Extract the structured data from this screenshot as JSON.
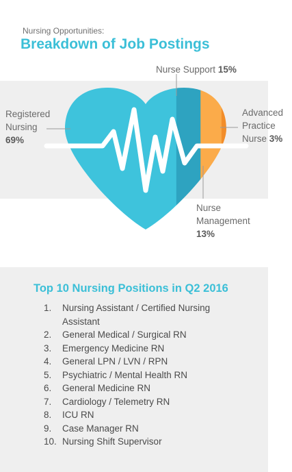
{
  "header": {
    "subtitle": "Nursing Opportunities:",
    "title": "Breakdown of Job Postings"
  },
  "chart_data": {
    "type": "pie",
    "shape": "heart",
    "slices": [
      {
        "label_lines": [
          "Registered",
          "Nursing"
        ],
        "value": 69,
        "value_label": "69%",
        "color": "#3ec3dc"
      },
      {
        "label_lines": [
          "Nurse Support"
        ],
        "value": 15,
        "value_label": "15%",
        "color": "#2ea3c0"
      },
      {
        "label_lines": [
          "Nurse",
          "Management"
        ],
        "value": 13,
        "value_label": "13%",
        "color": "#fbab4a"
      },
      {
        "label_lines": [
          "Advanced",
          "Practice",
          "Nurse"
        ],
        "value": 3,
        "value_label": "3%",
        "color": "#f28d2a"
      }
    ]
  },
  "top_positions": {
    "title": "Top 10 Nursing Positions in Q2 2016",
    "items": [
      {
        "num": "1.",
        "text": "Nursing Assistant / Certified Nursing Assistant"
      },
      {
        "num": "2.",
        "text": "General Medical / Surgical RN"
      },
      {
        "num": "3.",
        "text": "Emergency Medicine RN"
      },
      {
        "num": "4.",
        "text": "General LPN / LVN / RPN"
      },
      {
        "num": "5.",
        "text": "Psychiatric / Mental Health RN"
      },
      {
        "num": "6.",
        "text": "General Medicine RN"
      },
      {
        "num": "7.",
        "text": "Cardiology / Telemetry RN"
      },
      {
        "num": "8.",
        "text": "ICU RN"
      },
      {
        "num": "9.",
        "text": "Case Manager RN"
      },
      {
        "num": "10.",
        "text": "Nursing Shift Supervisor"
      }
    ]
  }
}
